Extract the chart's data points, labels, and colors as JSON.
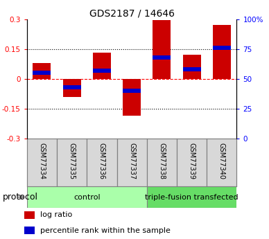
{
  "title": "GDS2187 / 14646",
  "samples": [
    "GSM77334",
    "GSM77335",
    "GSM77336",
    "GSM77337",
    "GSM77338",
    "GSM77339",
    "GSM77340"
  ],
  "log_ratio": [
    0.08,
    -0.09,
    0.13,
    -0.185,
    0.295,
    0.12,
    0.27
  ],
  "percentile_rank": [
    55,
    43,
    57,
    40,
    68,
    58,
    76
  ],
  "ylim_left": [
    -0.3,
    0.3
  ],
  "ylim_right": [
    0,
    100
  ],
  "yticks_left": [
    -0.3,
    -0.15,
    0,
    0.15,
    0.3
  ],
  "yticks_right": [
    0,
    25,
    50,
    75,
    100
  ],
  "ytick_labels_right": [
    "0",
    "25",
    "50",
    "75",
    "100%"
  ],
  "hlines_dotted": [
    0.15,
    -0.15
  ],
  "bar_color_red": "#cc0000",
  "bar_color_blue": "#0000cc",
  "bar_width": 0.6,
  "blue_bar_height": 0.022,
  "groups": [
    {
      "label": "control",
      "start": 0,
      "end": 4,
      "color": "#aaffaa"
    },
    {
      "label": "triple-fusion transfected",
      "start": 4,
      "end": 7,
      "color": "#66dd66"
    }
  ],
  "sample_box_color": "#d8d8d8",
  "protocol_label": "protocol",
  "legend_red_label": "log ratio",
  "legend_blue_label": "percentile rank within the sample",
  "title_fontsize": 10,
  "tick_fontsize": 7.5,
  "sample_fontsize": 7,
  "group_label_fontsize": 8,
  "legend_fontsize": 8,
  "protocol_fontsize": 9
}
